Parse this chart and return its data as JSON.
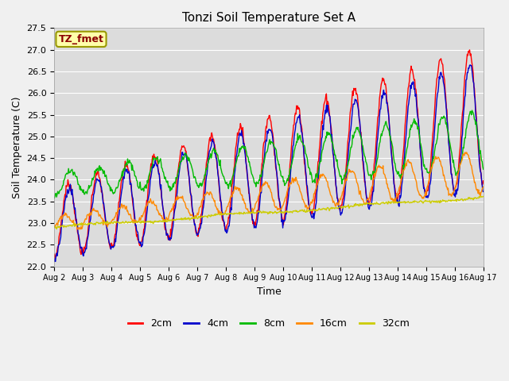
{
  "title": "Tonzi Soil Temperature Set A",
  "xlabel": "Time",
  "ylabel": "Soil Temperature (C)",
  "ylim": [
    22.0,
    27.5
  ],
  "annotation": "TZ_fmet",
  "fig_bg": "#f0f0f0",
  "plot_bg": "#dcdcdc",
  "legend_entries": [
    "2cm",
    "4cm",
    "8cm",
    "16cm",
    "32cm"
  ],
  "line_colors": [
    "#ff0000",
    "#0000cc",
    "#00bb00",
    "#ff8800",
    "#cccc00"
  ],
  "xtick_labels": [
    "Aug 2",
    "Aug 3",
    "Aug 4",
    "Aug 5",
    "Aug 6",
    "Aug 7",
    "Aug 8",
    "Aug 9",
    "Aug 10",
    "Aug 11",
    "Aug 12",
    "Aug 13",
    "Aug 14",
    "Aug 15",
    "Aug 16",
    "Aug 17"
  ],
  "n_days": 15,
  "points_per_day": 48
}
